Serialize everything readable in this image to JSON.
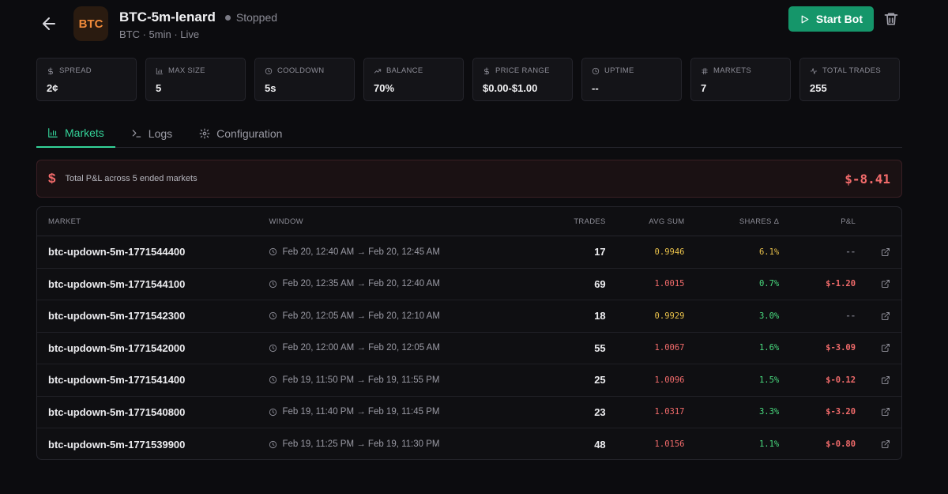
{
  "header": {
    "logo_text": "BTC",
    "title": "BTC-5m-lenard",
    "status": "Stopped",
    "subtitle": "BTC · 5min · Live",
    "start_label": "Start Bot"
  },
  "stats": [
    {
      "label": "SPREAD",
      "value": "2¢",
      "icon": "dollar-icon"
    },
    {
      "label": "MAX SIZE",
      "value": "5",
      "icon": "bar-chart-icon"
    },
    {
      "label": "COOLDOWN",
      "value": "5s",
      "icon": "clock-icon"
    },
    {
      "label": "BALANCE",
      "value": "70%",
      "icon": "trend-up-icon"
    },
    {
      "label": "PRICE RANGE",
      "value": "$0.00-$1.00",
      "icon": "dollar-icon"
    },
    {
      "label": "UPTIME",
      "value": "--",
      "icon": "clock-icon"
    },
    {
      "label": "MARKETS",
      "value": "7",
      "icon": "hash-icon"
    },
    {
      "label": "TOTAL TRADES",
      "value": "255",
      "icon": "activity-icon"
    }
  ],
  "tabs": [
    {
      "label": "Markets",
      "icon": "bar-chart-icon",
      "active": true
    },
    {
      "label": "Logs",
      "icon": "terminal-icon",
      "active": false
    },
    {
      "label": "Configuration",
      "icon": "gear-icon",
      "active": false
    }
  ],
  "banner": {
    "label": "Total P&L across 5 ended markets",
    "total": "$-8.41"
  },
  "table": {
    "headers": {
      "market": "MARKET",
      "window": "WINDOW",
      "trades": "TRADES",
      "avg_sum": "AVG SUM",
      "shares": "SHARES Δ",
      "pnl": "P&L"
    },
    "rows": [
      {
        "market": "btc-updown-5m-1771544400",
        "window": "Feb 20, 12:40 AM → Feb 20, 12:45 AM",
        "trades": "17",
        "avg_sum": "0.9946",
        "shares": "6.1%",
        "pnl": "--",
        "avg_color": "#e8c04a",
        "shares_color": "#e8c04a",
        "pnl_color": "#6a6a74"
      },
      {
        "market": "btc-updown-5m-1771544100",
        "window": "Feb 20, 12:35 AM → Feb 20, 12:40 AM",
        "trades": "69",
        "avg_sum": "1.0015",
        "shares": "0.7%",
        "pnl": "$-1.20",
        "avg_color": "#f26b6b",
        "shares_color": "#4ade80",
        "pnl_color": "#f26b6b"
      },
      {
        "market": "btc-updown-5m-1771542300",
        "window": "Feb 20, 12:05 AM → Feb 20, 12:10 AM",
        "trades": "18",
        "avg_sum": "0.9929",
        "shares": "3.0%",
        "pnl": "--",
        "avg_color": "#e8c04a",
        "shares_color": "#4ade80",
        "pnl_color": "#6a6a74"
      },
      {
        "market": "btc-updown-5m-1771542000",
        "window": "Feb 20, 12:00 AM → Feb 20, 12:05 AM",
        "trades": "55",
        "avg_sum": "1.0067",
        "shares": "1.6%",
        "pnl": "$-3.09",
        "avg_color": "#f26b6b",
        "shares_color": "#4ade80",
        "pnl_color": "#f26b6b"
      },
      {
        "market": "btc-updown-5m-1771541400",
        "window": "Feb 19, 11:50 PM → Feb 19, 11:55 PM",
        "trades": "25",
        "avg_sum": "1.0096",
        "shares": "1.5%",
        "pnl": "$-0.12",
        "avg_color": "#f26b6b",
        "shares_color": "#4ade80",
        "pnl_color": "#f26b6b"
      },
      {
        "market": "btc-updown-5m-1771540800",
        "window": "Feb 19, 11:40 PM → Feb 19, 11:45 PM",
        "trades": "23",
        "avg_sum": "1.0317",
        "shares": "3.3%",
        "pnl": "$-3.20",
        "avg_color": "#f26b6b",
        "shares_color": "#4ade80",
        "pnl_color": "#f26b6b"
      },
      {
        "market": "btc-updown-5m-1771539900",
        "window": "Feb 19, 11:25 PM → Feb 19, 11:30 PM",
        "trades": "48",
        "avg_sum": "1.0156",
        "shares": "1.1%",
        "pnl": "$-0.80",
        "avg_color": "#f26b6b",
        "shares_color": "#4ade80",
        "pnl_color": "#f26b6b"
      }
    ]
  }
}
